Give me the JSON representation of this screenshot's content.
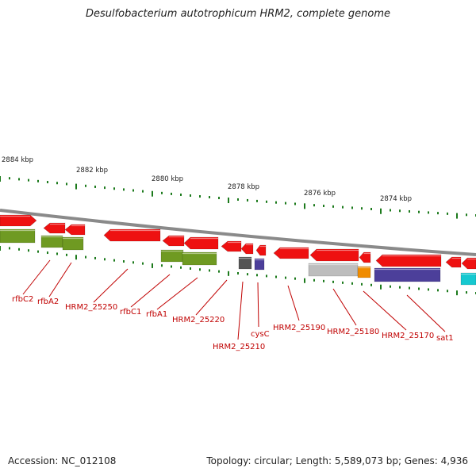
{
  "title": "Desulfobacterium autotrophicum HRM2, complete genome",
  "footer": {
    "accession": "Accession: NC_012108",
    "summary": "Topology: circular; Length: 5,589,073 bp; Genes: 4,936"
  },
  "colors": {
    "backbone": "#8a8a8a",
    "gene_red": "#ee1111",
    "gene_olive": "#6f9a22",
    "gene_grey": "#bdbdbd",
    "gene_darkgrey": "#555555",
    "gene_purple": "#4c3f9a",
    "gene_orange": "#f08c00",
    "gene_cyan": "#16c8d0",
    "tick_green": "#1c7a1c",
    "label_red": "#c00000"
  },
  "scale_labels": [
    "2884 kbp",
    "2882 kbp",
    "2880 kbp",
    "2878 kbp",
    "2876 kbp",
    "2874 kbp"
  ],
  "gene_labels": [
    "rfbC2",
    "rfbA2",
    "HRM2_25250",
    "rfbC1",
    "rfbA1",
    "HRM2_25220",
    "HRM2_25210",
    "cysC",
    "HRM2_25190",
    "HRM2_25180",
    "HRM2_25170",
    "sat1"
  ]
}
